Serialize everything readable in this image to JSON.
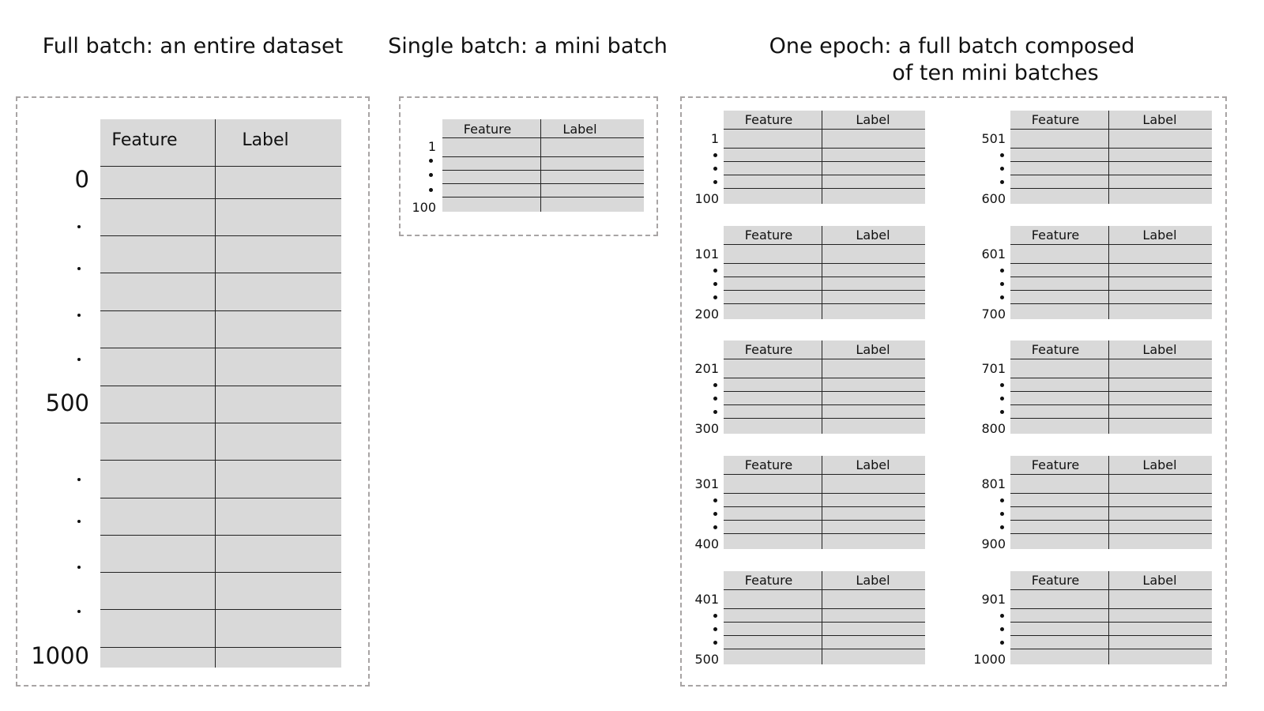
{
  "titles": {
    "full_batch": "Full batch: an entire dataset",
    "single_batch": "Single batch: a mini batch",
    "epoch_line1": "One epoch: a full batch composed",
    "epoch_line2": "of ten mini batches"
  },
  "columns": {
    "feature": "Feature",
    "label": "Label"
  },
  "full_batch": {
    "start": "0",
    "middle": "500",
    "end": "1000"
  },
  "single_batch": {
    "start": "1",
    "end": "100"
  },
  "epoch_batches": [
    {
      "start": "1",
      "end": "100"
    },
    {
      "start": "101",
      "end": "200"
    },
    {
      "start": "201",
      "end": "300"
    },
    {
      "start": "301",
      "end": "400"
    },
    {
      "start": "401",
      "end": "500"
    },
    {
      "start": "501",
      "end": "600"
    },
    {
      "start": "601",
      "end": "700"
    },
    {
      "start": "701",
      "end": "800"
    },
    {
      "start": "801",
      "end": "900"
    },
    {
      "start": "901",
      "end": "1000"
    }
  ],
  "colors": {
    "table_fill": "#d9d9d9",
    "dashed_border": "#a8a4a4"
  }
}
